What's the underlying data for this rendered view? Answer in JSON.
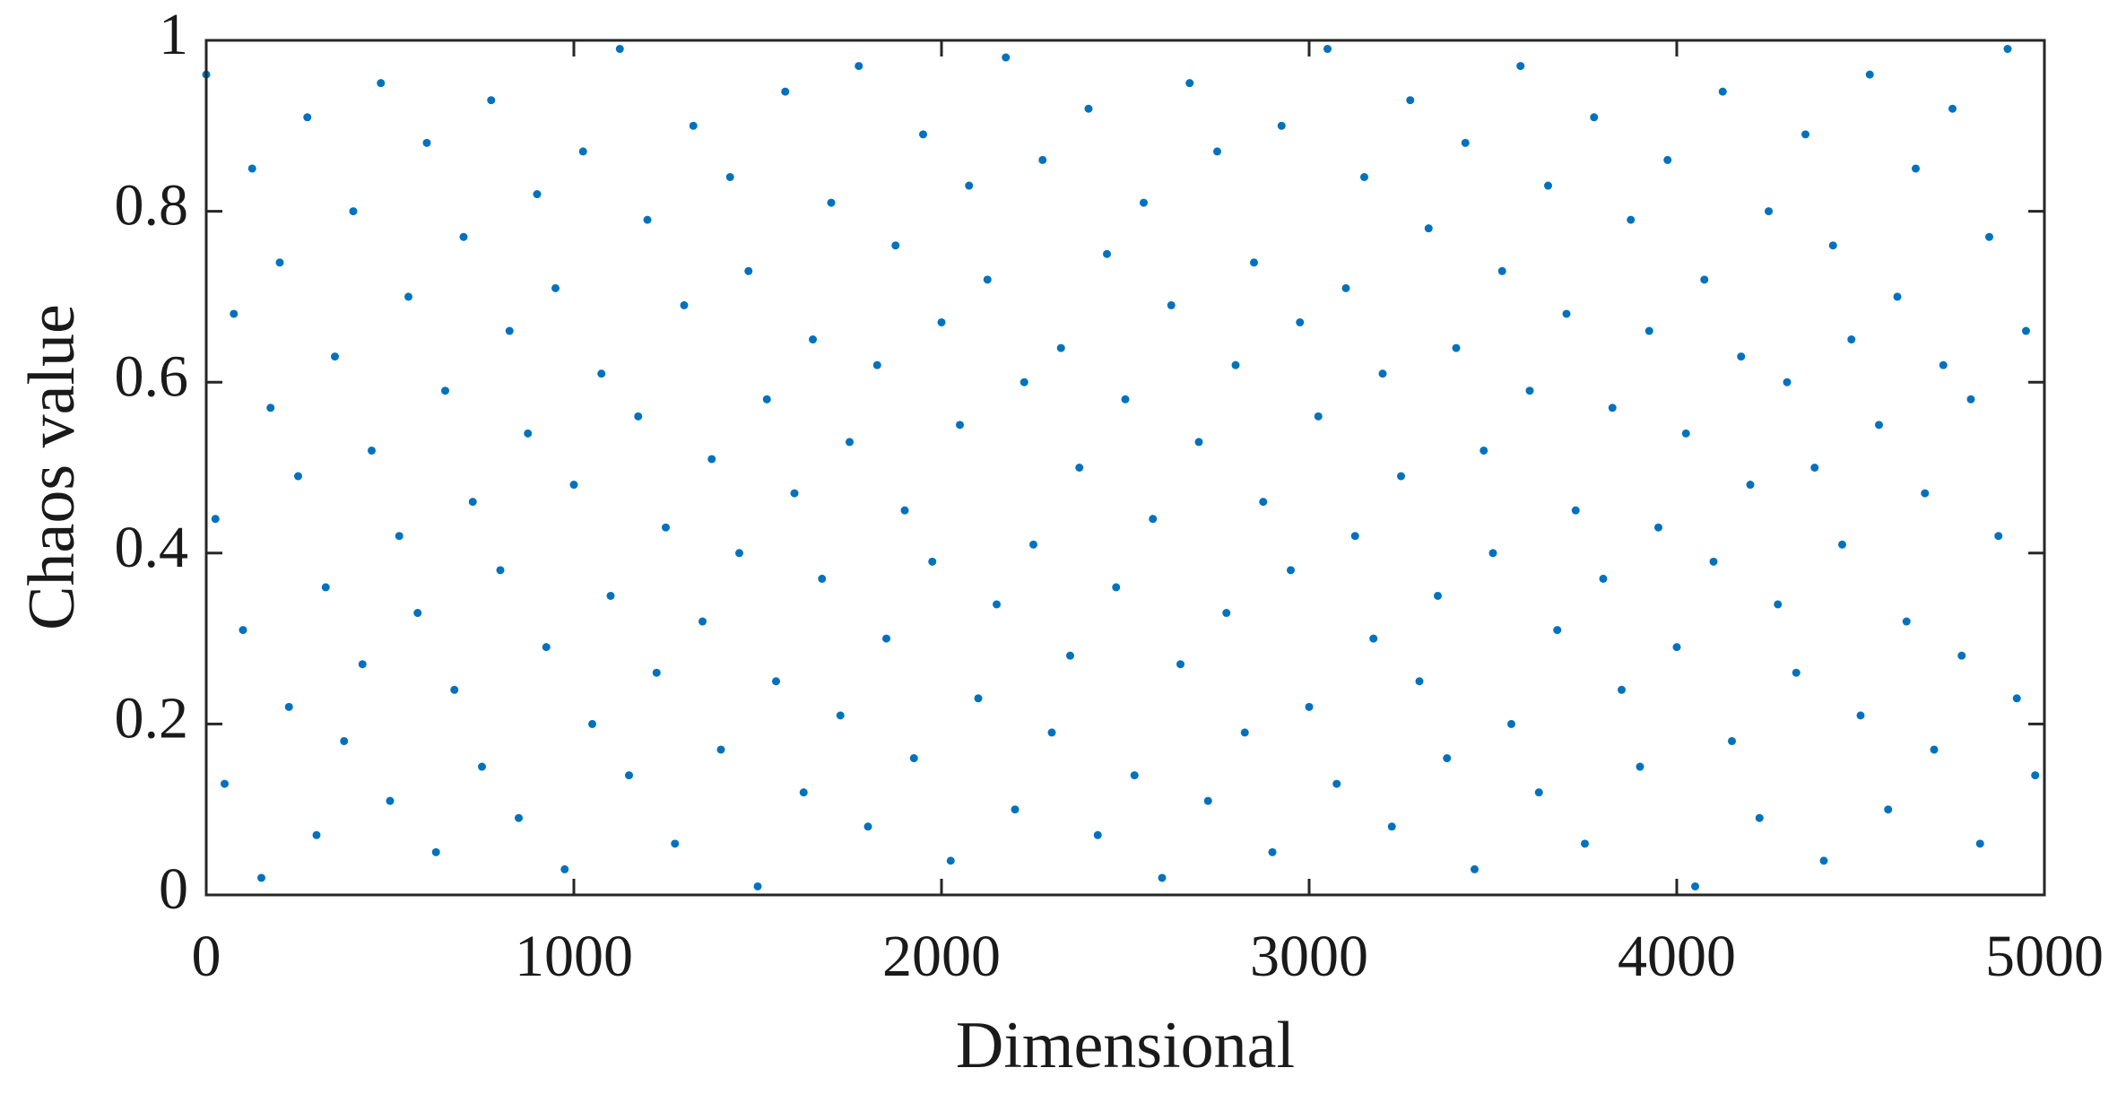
{
  "chart_data": {
    "type": "scatter",
    "x_label": "Dimensional",
    "y_label": "Chaos value",
    "color": "#0072bd",
    "xlim": [
      0,
      5000
    ],
    "ylim": [
      0,
      1
    ],
    "xticks": [
      0,
      1000,
      2000,
      3000,
      4000,
      5000
    ],
    "yticks": [
      0,
      0.2,
      0.4,
      0.6,
      0.8,
      1
    ],
    "x": [
      0,
      25,
      50,
      75,
      100,
      125,
      150,
      175,
      200,
      225,
      250,
      275,
      300,
      325,
      350,
      375,
      400,
      425,
      450,
      475,
      500,
      525,
      550,
      575,
      600,
      625,
      650,
      675,
      700,
      725,
      750,
      775,
      800,
      825,
      850,
      875,
      900,
      925,
      950,
      975,
      1000,
      1025,
      1050,
      1075,
      1100,
      1125,
      1150,
      1175,
      1200,
      1225,
      1250,
      1275,
      1300,
      1325,
      1350,
      1375,
      1400,
      1425,
      1450,
      1475,
      1500,
      1525,
      1550,
      1575,
      1600,
      1625,
      1650,
      1675,
      1700,
      1725,
      1750,
      1775,
      1800,
      1825,
      1850,
      1875,
      1900,
      1925,
      1950,
      1975,
      2000,
      2025,
      2050,
      2075,
      2100,
      2125,
      2150,
      2175,
      2200,
      2225,
      2250,
      2275,
      2300,
      2325,
      2350,
      2375,
      2400,
      2425,
      2450,
      2475,
      2500,
      2525,
      2550,
      2575,
      2600,
      2625,
      2650,
      2675,
      2700,
      2725,
      2750,
      2775,
      2800,
      2825,
      2850,
      2875,
      2900,
      2925,
      2950,
      2975,
      3000,
      3025,
      3050,
      3075,
      3100,
      3125,
      3150,
      3175,
      3200,
      3225,
      3250,
      3275,
      3300,
      3325,
      3350,
      3375,
      3400,
      3425,
      3450,
      3475,
      3500,
      3525,
      3550,
      3575,
      3600,
      3625,
      3650,
      3675,
      3700,
      3725,
      3750,
      3775,
      3800,
      3825,
      3850,
      3875,
      3900,
      3925,
      3950,
      3975,
      4000,
      4025,
      4050,
      4075,
      4100,
      4125,
      4150,
      4175,
      4200,
      4225,
      4250,
      4275,
      4300,
      4325,
      4350,
      4375,
      4400,
      4425,
      4450,
      4475,
      4500,
      4525,
      4550,
      4575,
      4600,
      4625,
      4650,
      4675,
      4700,
      4725,
      4750,
      4775,
      4800,
      4825,
      4850,
      4875,
      4900,
      4925,
      4950,
      4975
    ],
    "values": [
      0.96,
      0.44,
      0.13,
      0.68,
      0.31,
      0.85,
      0.02,
      0.57,
      0.74,
      0.22,
      0.49,
      0.91,
      0.07,
      0.36,
      0.63,
      0.18,
      0.8,
      0.27,
      0.52,
      0.95,
      0.11,
      0.42,
      0.7,
      0.33,
      0.88,
      0.05,
      0.59,
      0.24,
      0.77,
      0.46,
      0.15,
      0.93,
      0.38,
      0.66,
      0.09,
      0.54,
      0.82,
      0.29,
      0.71,
      0.03,
      0.48,
      0.87,
      0.2,
      0.61,
      0.35,
      0.99,
      0.14,
      0.56,
      0.79,
      0.26,
      0.43,
      0.06,
      0.69,
      0.9,
      0.32,
      0.51,
      0.17,
      0.84,
      0.4,
      0.73,
      0.01,
      0.58,
      0.25,
      0.94,
      0.47,
      0.12,
      0.65,
      0.37,
      0.81,
      0.21,
      0.53,
      0.97,
      0.08,
      0.62,
      0.3,
      0.76,
      0.45,
      0.16,
      0.89,
      0.39,
      0.67,
      0.04,
      0.55,
      0.83,
      0.23,
      0.72,
      0.34,
      0.98,
      0.1,
      0.6,
      0.41,
      0.86,
      0.19,
      0.64,
      0.28,
      0.5,
      0.92,
      0.07,
      0.75,
      0.36,
      0.58,
      0.14,
      0.81,
      0.44,
      0.02,
      0.69,
      0.27,
      0.95,
      0.53,
      0.11,
      0.87,
      0.33,
      0.62,
      0.19,
      0.74,
      0.46,
      0.05,
      0.9,
      0.38,
      0.67,
      0.22,
      0.56,
      0.99,
      0.13,
      0.71,
      0.42,
      0.84,
      0.3,
      0.61,
      0.08,
      0.49,
      0.93,
      0.25,
      0.78,
      0.35,
      0.16,
      0.64,
      0.88,
      0.03,
      0.52,
      0.4,
      0.73,
      0.2,
      0.97,
      0.59,
      0.12,
      0.83,
      0.31,
      0.68,
      0.45,
      0.06,
      0.91,
      0.37,
      0.57,
      0.24,
      0.79,
      0.15,
      0.66,
      0.43,
      0.86,
      0.29,
      0.54,
      0.01,
      0.72,
      0.39,
      0.94,
      0.18,
      0.63,
      0.48,
      0.09,
      0.8,
      0.34,
      0.6,
      0.26,
      0.89,
      0.5,
      0.04,
      0.76,
      0.41,
      0.65,
      0.21,
      0.96,
      0.55,
      0.1,
      0.7,
      0.32,
      0.85,
      0.47,
      0.17,
      0.62,
      0.92,
      0.28,
      0.58,
      0.06,
      0.77,
      0.42,
      0.99,
      0.23,
      0.66,
      0.14
    ]
  }
}
